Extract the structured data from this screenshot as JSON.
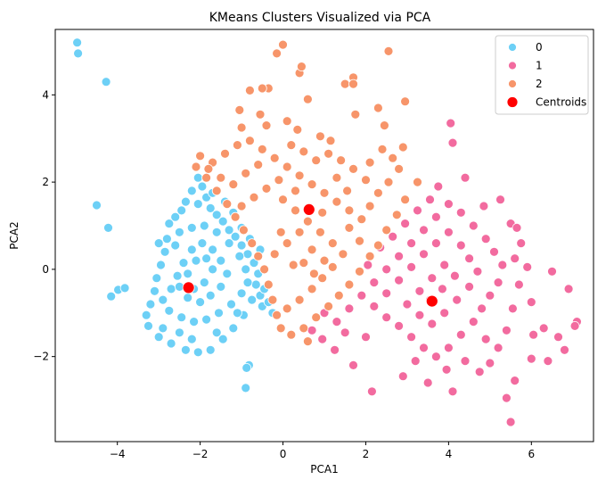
{
  "chart_data": {
    "type": "scatter",
    "title": "KMeans Clusters Visualized via PCA",
    "xlabel": "PCA1",
    "ylabel": "PCA2",
    "xlim": [
      -5.5,
      7.5
    ],
    "ylim": [
      -3.95,
      5.5
    ],
    "xticks": [
      -4,
      -2,
      0,
      2,
      4,
      6
    ],
    "yticks": [
      -2,
      0,
      2,
      4
    ],
    "grid": false,
    "legend_position": "top-right",
    "series": [
      {
        "name": "0",
        "color": "#6dd0f6",
        "points": [
          [
            -4.97,
            5.2
          ],
          [
            -4.95,
            4.95
          ],
          [
            -4.27,
            4.3
          ],
          [
            -4.5,
            1.47
          ],
          [
            -4.22,
            0.95
          ],
          [
            -4.15,
            -0.62
          ],
          [
            -3.98,
            -0.47
          ],
          [
            -3.82,
            -0.43
          ],
          [
            -0.9,
            -2.72
          ],
          [
            -0.82,
            -2.2
          ],
          [
            -0.88,
            -2.26
          ],
          [
            -2.75,
            1.05
          ],
          [
            -2.6,
            1.2
          ],
          [
            -2.35,
            1.55
          ],
          [
            -2.2,
            1.8
          ],
          [
            -2.05,
            2.1
          ],
          [
            -1.95,
            1.9
          ],
          [
            -1.85,
            1.65
          ],
          [
            -1.75,
            1.4
          ],
          [
            -1.6,
            1.25
          ],
          [
            -1.45,
            1.1
          ],
          [
            -1.3,
            0.9
          ],
          [
            -1.15,
            0.75
          ],
          [
            -1.0,
            0.55
          ],
          [
            -0.85,
            0.35
          ],
          [
            -0.7,
            0.15
          ],
          [
            -0.6,
            -0.1
          ],
          [
            -0.65,
            -0.35
          ],
          [
            -0.55,
            -0.6
          ],
          [
            -0.5,
            -0.85
          ],
          [
            -0.95,
            -1.05
          ],
          [
            -1.2,
            -1.35
          ],
          [
            -1.45,
            -1.6
          ],
          [
            -1.75,
            -1.85
          ],
          [
            -2.05,
            -1.9
          ],
          [
            -2.35,
            -1.85
          ],
          [
            -2.7,
            -1.7
          ],
          [
            -3.0,
            -1.55
          ],
          [
            -3.25,
            -1.3
          ],
          [
            -3.3,
            -1.05
          ],
          [
            -3.2,
            -0.8
          ],
          [
            -3.1,
            -0.5
          ],
          [
            -3.05,
            -0.2
          ],
          [
            -2.95,
            0.1
          ],
          [
            -2.85,
            0.4
          ],
          [
            -2.8,
            0.7
          ],
          [
            -2.5,
            0.85
          ],
          [
            -2.2,
            0.95
          ],
          [
            -1.9,
            1.0
          ],
          [
            -1.6,
            0.85
          ],
          [
            -1.3,
            0.6
          ],
          [
            -1.05,
            0.3
          ],
          [
            -0.9,
            0.0
          ],
          [
            -0.85,
            -0.3
          ],
          [
            -1.0,
            -0.55
          ],
          [
            -1.25,
            -0.8
          ],
          [
            -1.55,
            -1.0
          ],
          [
            -1.85,
            -1.15
          ],
          [
            -2.15,
            -1.2
          ],
          [
            -2.45,
            -1.1
          ],
          [
            -2.75,
            -0.95
          ],
          [
            -2.9,
            -0.7
          ],
          [
            -2.7,
            -0.45
          ],
          [
            -2.55,
            -0.15
          ],
          [
            -2.4,
            0.15
          ],
          [
            -2.2,
            0.45
          ],
          [
            -1.95,
            0.6
          ],
          [
            -1.7,
            0.45
          ],
          [
            -1.5,
            0.2
          ],
          [
            -1.35,
            -0.1
          ],
          [
            -1.5,
            -0.4
          ],
          [
            -1.75,
            -0.6
          ],
          [
            -2.0,
            -0.75
          ],
          [
            -2.3,
            -0.65
          ],
          [
            -2.5,
            -0.4
          ],
          [
            -2.3,
            -0.1
          ],
          [
            -2.1,
            0.2
          ],
          [
            -1.85,
            0.25
          ],
          [
            -1.7,
            0.0
          ],
          [
            -1.9,
            -0.3
          ],
          [
            -2.15,
            -0.45
          ],
          [
            -2.6,
            0.55
          ],
          [
            -3.0,
            0.6
          ],
          [
            -1.4,
            1.55
          ],
          [
            -1.2,
            1.3
          ],
          [
            -2.9,
            -1.35
          ],
          [
            -2.5,
            -1.45
          ],
          [
            -1.1,
            -1.0
          ],
          [
            -0.75,
            -0.7
          ],
          [
            -0.45,
            -0.45
          ],
          [
            -0.35,
            -0.75
          ],
          [
            -0.25,
            -1.0
          ],
          [
            -1.6,
            -1.45
          ],
          [
            -2.2,
            -1.6
          ],
          [
            -1.0,
            0.95
          ],
          [
            -0.8,
            0.7
          ],
          [
            -0.55,
            0.45
          ],
          [
            -2.45,
            1.35
          ],
          [
            -2.05,
            1.5
          ],
          [
            -1.7,
            1.75
          ]
        ]
      },
      {
        "name": "1",
        "color": "#f26b9f",
        "points": [
          [
            4.05,
            3.35
          ],
          [
            4.1,
            2.9
          ],
          [
            4.4,
            2.1
          ],
          [
            3.75,
            1.9
          ],
          [
            5.25,
            1.6
          ],
          [
            5.5,
            1.05
          ],
          [
            5.65,
            0.95
          ],
          [
            5.75,
            0.6
          ],
          [
            5.6,
            0.25
          ],
          [
            6.5,
            -0.05
          ],
          [
            6.9,
            -0.45
          ],
          [
            7.1,
            -1.2
          ],
          [
            7.05,
            -1.3
          ],
          [
            6.65,
            -1.55
          ],
          [
            6.8,
            -1.85
          ],
          [
            6.3,
            -1.35
          ],
          [
            6.0,
            -0.75
          ],
          [
            6.05,
            -1.5
          ],
          [
            6.4,
            -2.1
          ],
          [
            6.0,
            -2.05
          ],
          [
            5.6,
            -2.55
          ],
          [
            5.4,
            -2.95
          ],
          [
            5.5,
            -3.5
          ],
          [
            5.0,
            -2.15
          ],
          [
            4.75,
            -2.35
          ],
          [
            4.1,
            -2.8
          ],
          [
            3.5,
            -2.6
          ],
          [
            3.2,
            -2.1
          ],
          [
            2.9,
            -2.45
          ],
          [
            2.15,
            -2.8
          ],
          [
            1.7,
            -2.2
          ],
          [
            1.25,
            -1.85
          ],
          [
            0.95,
            -1.6
          ],
          [
            0.7,
            -1.4
          ],
          [
            1.3,
            -1.2
          ],
          [
            1.6,
            -0.9
          ],
          [
            1.9,
            -0.6
          ],
          [
            2.2,
            -0.3
          ],
          [
            2.5,
            0.0
          ],
          [
            2.8,
            0.3
          ],
          [
            3.1,
            0.6
          ],
          [
            3.4,
            0.9
          ],
          [
            3.7,
            1.2
          ],
          [
            4.0,
            1.5
          ],
          [
            4.3,
            1.3
          ],
          [
            4.6,
            1.0
          ],
          [
            4.9,
            0.7
          ],
          [
            5.1,
            0.4
          ],
          [
            5.3,
            0.1
          ],
          [
            5.2,
            -0.3
          ],
          [
            5.0,
            -0.6
          ],
          [
            4.8,
            -0.9
          ],
          [
            4.6,
            -1.2
          ],
          [
            4.3,
            -1.5
          ],
          [
            4.0,
            -1.8
          ],
          [
            3.7,
            -2.0
          ],
          [
            3.4,
            -1.8
          ],
          [
            3.1,
            -1.55
          ],
          [
            2.8,
            -1.3
          ],
          [
            2.5,
            -1.1
          ],
          [
            2.2,
            -0.85
          ],
          [
            2.5,
            -0.55
          ],
          [
            2.8,
            -0.25
          ],
          [
            3.1,
            0.05
          ],
          [
            3.4,
            0.35
          ],
          [
            3.7,
            0.6
          ],
          [
            4.0,
            0.85
          ],
          [
            4.3,
            0.55
          ],
          [
            4.5,
            0.25
          ],
          [
            4.7,
            -0.05
          ],
          [
            4.5,
            -0.4
          ],
          [
            4.2,
            -0.7
          ],
          [
            3.9,
            -1.0
          ],
          [
            3.6,
            -1.25
          ],
          [
            3.3,
            -1.05
          ],
          [
            3.0,
            -0.8
          ],
          [
            3.3,
            -0.5
          ],
          [
            3.6,
            -0.2
          ],
          [
            3.9,
            0.1
          ],
          [
            4.15,
            -0.15
          ],
          [
            3.85,
            -0.45
          ],
          [
            3.55,
            -0.7
          ],
          [
            2.65,
            0.75
          ],
          [
            2.95,
            1.05
          ],
          [
            3.25,
            1.35
          ],
          [
            3.55,
            1.6
          ],
          [
            4.85,
            1.45
          ],
          [
            5.9,
            0.05
          ],
          [
            5.7,
            -0.35
          ],
          [
            5.55,
            -0.9
          ],
          [
            5.4,
            -1.4
          ],
          [
            5.2,
            -1.8
          ],
          [
            4.9,
            -1.6
          ],
          [
            4.4,
            -2.1
          ],
          [
            2.0,
            -1.55
          ],
          [
            1.5,
            -1.45
          ],
          [
            1.0,
            -1.0
          ],
          [
            2.35,
            0.5
          ],
          [
            2.05,
            0.1
          ],
          [
            3.95,
            -2.3
          ]
        ]
      },
      {
        "name": "2",
        "color": "#f7956a",
        "points": [
          [
            0.0,
            5.15
          ],
          [
            -0.15,
            4.95
          ],
          [
            0.4,
            4.5
          ],
          [
            0.45,
            4.65
          ],
          [
            2.55,
            5.0
          ],
          [
            1.7,
            4.4
          ],
          [
            1.5,
            4.25
          ],
          [
            1.7,
            4.25
          ],
          [
            0.6,
            3.9
          ],
          [
            -0.35,
            4.15
          ],
          [
            -0.5,
            4.15
          ],
          [
            -0.8,
            4.1
          ],
          [
            -1.05,
            3.65
          ],
          [
            -1.0,
            3.25
          ],
          [
            -0.55,
            3.55
          ],
          [
            -0.4,
            3.3
          ],
          [
            0.1,
            3.4
          ],
          [
            0.35,
            3.2
          ],
          [
            0.9,
            3.05
          ],
          [
            1.15,
            2.95
          ],
          [
            1.75,
            3.55
          ],
          [
            2.3,
            3.7
          ],
          [
            2.45,
            3.3
          ],
          [
            2.95,
            3.85
          ],
          [
            2.4,
            2.75
          ],
          [
            2.9,
            2.8
          ],
          [
            2.1,
            2.45
          ],
          [
            2.65,
            2.55
          ],
          [
            2.8,
            2.3
          ],
          [
            3.25,
            2.0
          ],
          [
            2.95,
            1.6
          ],
          [
            2.75,
            1.25
          ],
          [
            2.5,
            0.9
          ],
          [
            2.3,
            0.55
          ],
          [
            2.1,
            0.3
          ],
          [
            1.85,
            -0.05
          ],
          [
            1.6,
            -0.35
          ],
          [
            1.35,
            -0.6
          ],
          [
            1.1,
            -0.85
          ],
          [
            0.8,
            -1.1
          ],
          [
            0.5,
            -1.35
          ],
          [
            0.2,
            -1.5
          ],
          [
            -0.05,
            -1.35
          ],
          [
            -0.15,
            -1.05
          ],
          [
            -0.25,
            -0.7
          ],
          [
            -0.35,
            -0.35
          ],
          [
            -0.45,
            0.0
          ],
          [
            -0.6,
            0.3
          ],
          [
            -0.75,
            0.6
          ],
          [
            -0.95,
            0.9
          ],
          [
            -1.15,
            1.2
          ],
          [
            -1.35,
            1.5
          ],
          [
            -1.6,
            1.8
          ],
          [
            -1.85,
            2.1
          ],
          [
            -2.1,
            2.35
          ],
          [
            -2.0,
            2.6
          ],
          [
            -1.7,
            2.45
          ],
          [
            -1.4,
            2.65
          ],
          [
            -1.1,
            2.85
          ],
          [
            -0.8,
            2.95
          ],
          [
            -0.5,
            2.75
          ],
          [
            -0.2,
            2.55
          ],
          [
            0.1,
            2.35
          ],
          [
            0.4,
            2.15
          ],
          [
            0.7,
            1.95
          ],
          [
            1.0,
            1.75
          ],
          [
            1.3,
            1.55
          ],
          [
            1.6,
            1.35
          ],
          [
            1.9,
            1.15
          ],
          [
            2.1,
            1.45
          ],
          [
            2.3,
            1.75
          ],
          [
            2.0,
            2.05
          ],
          [
            1.7,
            2.3
          ],
          [
            1.4,
            2.5
          ],
          [
            1.1,
            2.65
          ],
          [
            0.8,
            2.5
          ],
          [
            0.5,
            2.7
          ],
          [
            0.2,
            2.85
          ],
          [
            -0.1,
            2.05
          ],
          [
            -0.4,
            1.85
          ],
          [
            -0.7,
            1.65
          ],
          [
            -1.0,
            1.45
          ],
          [
            -1.2,
            1.95
          ],
          [
            -0.9,
            2.2
          ],
          [
            -0.6,
            2.4
          ],
          [
            0.0,
            1.6
          ],
          [
            0.3,
            1.35
          ],
          [
            0.6,
            1.1
          ],
          [
            0.9,
            0.85
          ],
          [
            1.2,
            0.6
          ],
          [
            1.45,
            0.35
          ],
          [
            1.2,
            0.05
          ],
          [
            0.95,
            -0.2
          ],
          [
            0.7,
            -0.45
          ],
          [
            0.4,
            -0.7
          ],
          [
            0.1,
            -0.9
          ],
          [
            -0.2,
            0.35
          ],
          [
            0.1,
            0.6
          ],
          [
            0.4,
            0.85
          ],
          [
            0.7,
            0.45
          ],
          [
            1.0,
            0.2
          ],
          [
            0.75,
            -0.1
          ],
          [
            0.5,
            0.15
          ],
          [
            0.25,
            0.1
          ],
          [
            -0.05,
            0.85
          ],
          [
            1.6,
            0.95
          ],
          [
            1.85,
            0.65
          ],
          [
            0.6,
            -1.65
          ],
          [
            1.3,
            2.1
          ],
          [
            0.95,
            1.3
          ],
          [
            -1.5,
            2.1
          ],
          [
            -1.8,
            2.3
          ],
          [
            0.3,
            1.8
          ],
          [
            1.55,
            1.8
          ],
          [
            2.55,
            2.0
          ]
        ]
      }
    ],
    "centroids": {
      "name": "Centroids",
      "color": "#ff0000",
      "points": [
        [
          -2.28,
          -0.42
        ],
        [
          3.6,
          -0.73
        ],
        [
          0.63,
          1.37
        ]
      ]
    }
  }
}
